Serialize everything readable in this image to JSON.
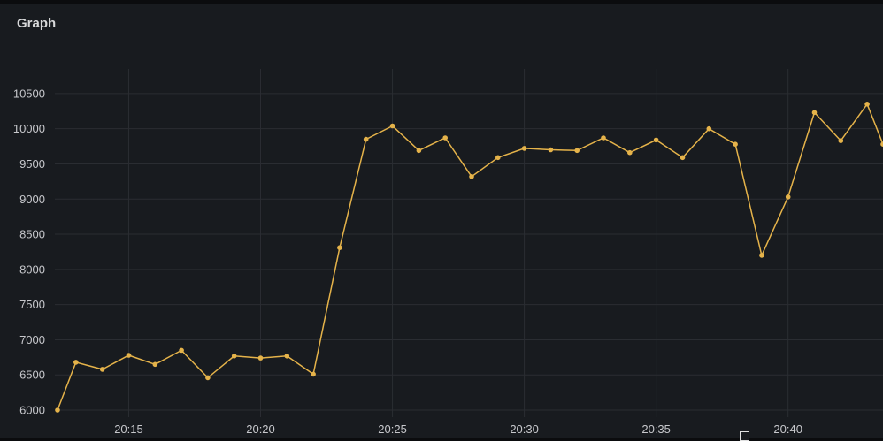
{
  "panel": {
    "title": "Graph"
  },
  "chart_data": {
    "type": "line",
    "title": "Graph",
    "xlabel": "",
    "ylabel": "",
    "x_ticks": [
      "20:15",
      "20:20",
      "20:25",
      "20:30",
      "20:35",
      "20:40"
    ],
    "x_tick_minutes": [
      15,
      20,
      25,
      30,
      35,
      40
    ],
    "y_ticks": [
      6000,
      6500,
      7000,
      7500,
      8000,
      8500,
      9000,
      9500,
      10000,
      10500
    ],
    "xlim_minutes": [
      12.2,
      43.6
    ],
    "ylim": [
      5900,
      10850
    ],
    "grid": true,
    "legend": "none",
    "series": [
      {
        "color": "#e5b34a",
        "x_minutes": [
          12.3,
          13,
          14,
          15,
          16,
          17,
          18,
          19,
          20,
          21,
          22,
          23,
          24,
          25,
          26,
          27,
          28,
          29,
          30,
          31,
          32,
          33,
          34,
          35,
          36,
          37,
          38,
          39,
          40,
          41,
          42,
          43,
          43.6
        ],
        "values": [
          6000,
          6680,
          6580,
          6780,
          6650,
          6850,
          6460,
          6770,
          6740,
          6770,
          6510,
          8310,
          9850,
          10040,
          9690,
          9870,
          9320,
          9590,
          9720,
          9700,
          9690,
          9870,
          9660,
          9840,
          9590,
          10000,
          9780,
          8200,
          9030,
          10230,
          9830,
          10350,
          9780
        ]
      }
    ]
  }
}
